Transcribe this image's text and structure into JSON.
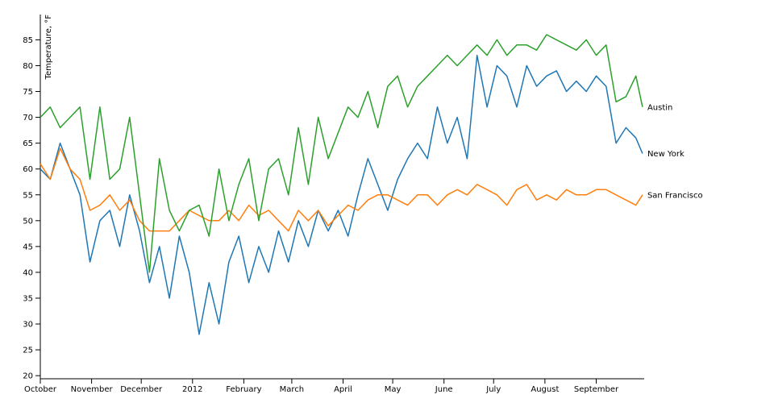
{
  "chart_data": {
    "type": "line",
    "y_label": "Temperature, °F",
    "x": [
      0,
      6,
      12,
      18,
      24,
      30,
      36,
      42,
      48,
      54,
      60,
      66,
      72,
      78,
      84,
      90,
      96,
      102,
      108,
      114,
      120,
      126,
      132,
      138,
      144,
      150,
      156,
      162,
      168,
      174,
      180,
      186,
      192,
      198,
      204,
      210,
      216,
      222,
      228,
      234,
      240,
      246,
      252,
      258,
      264,
      270,
      276,
      282,
      288,
      294,
      300,
      306,
      312,
      318,
      324,
      330,
      336,
      342,
      348,
      354,
      360,
      364
    ],
    "xlim": [
      0,
      365
    ],
    "xticks": [
      {
        "value": 0,
        "label": "October"
      },
      {
        "value": 31,
        "label": "November"
      },
      {
        "value": 61,
        "label": "December"
      },
      {
        "value": 92,
        "label": "2012"
      },
      {
        "value": 123,
        "label": "February"
      },
      {
        "value": 152,
        "label": "March"
      },
      {
        "value": 183,
        "label": "April"
      },
      {
        "value": 213,
        "label": "May"
      },
      {
        "value": 244,
        "label": "June"
      },
      {
        "value": 274,
        "label": "July"
      },
      {
        "value": 305,
        "label": "August"
      },
      {
        "value": 336,
        "label": "September"
      }
    ],
    "ylim": [
      19.4,
      89.9
    ],
    "yticks": [
      20,
      25,
      30,
      35,
      40,
      45,
      50,
      55,
      60,
      65,
      70,
      75,
      80,
      85
    ],
    "series": [
      {
        "name": "New York",
        "color": "#1f77b4",
        "values": [
          60,
          58,
          65,
          60,
          55,
          42,
          50,
          52,
          45,
          55,
          48,
          38,
          45,
          35,
          47,
          40,
          28,
          38,
          30,
          42,
          47,
          38,
          45,
          40,
          48,
          42,
          50,
          45,
          52,
          48,
          52,
          47,
          55,
          62,
          57,
          52,
          58,
          62,
          65,
          62,
          72,
          65,
          70,
          62,
          82,
          72,
          80,
          78,
          72,
          80,
          76,
          78,
          79,
          75,
          77,
          75,
          78,
          76,
          65,
          68,
          66,
          63
        ]
      },
      {
        "name": "San Francisco",
        "color": "#ff7f0e",
        "values": [
          61,
          58,
          64,
          60,
          58,
          52,
          53,
          55,
          52,
          54,
          50,
          48,
          48,
          48,
          50,
          52,
          51,
          50,
          50,
          52,
          50,
          53,
          51,
          52,
          50,
          48,
          52,
          50,
          52,
          49,
          51,
          53,
          52,
          54,
          55,
          55,
          54,
          53,
          55,
          55,
          53,
          55,
          56,
          55,
          57,
          56,
          55,
          53,
          56,
          57,
          54,
          55,
          54,
          56,
          55,
          55,
          56,
          56,
          55,
          54,
          53,
          55
        ]
      },
      {
        "name": "Austin",
        "color": "#2ca02c",
        "values": [
          70,
          72,
          68,
          70,
          72,
          58,
          72,
          58,
          60,
          70,
          55,
          40,
          62,
          52,
          48,
          52,
          53,
          47,
          60,
          50,
          57,
          62,
          50,
          60,
          62,
          55,
          68,
          57,
          70,
          62,
          67,
          72,
          70,
          75,
          68,
          76,
          78,
          72,
          76,
          78,
          80,
          82,
          80,
          82,
          84,
          82,
          85,
          82,
          84,
          84,
          83,
          86,
          85,
          84,
          83,
          85,
          82,
          84,
          73,
          74,
          78,
          72
        ]
      }
    ]
  }
}
